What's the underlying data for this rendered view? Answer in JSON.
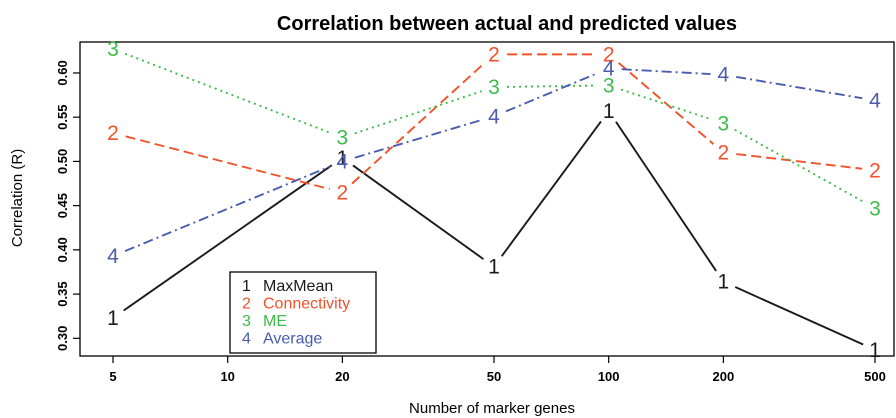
{
  "chart_data": {
    "type": "line",
    "title": "Correlation between actual and predicted values",
    "xlabel": "Number of marker genes",
    "ylabel": "Correlation (R)",
    "x_scale": "log",
    "x_ticks": [
      5,
      10,
      20,
      50,
      100,
      200,
      500
    ],
    "x": [
      5,
      20,
      50,
      100,
      200,
      500
    ],
    "xlim": [
      5,
      500
    ],
    "ylim": [
      0.28,
      0.635
    ],
    "y_ticks": [
      0.3,
      0.35,
      0.4,
      0.45,
      0.5,
      0.55,
      0.6
    ],
    "grid": false,
    "legend_position": "bottom-left",
    "series": [
      {
        "name": "MaxMean",
        "marker": "1",
        "color": "#1a1a1a",
        "dash": "solid",
        "values": [
          0.323,
          0.504,
          0.381,
          0.557,
          0.364,
          0.287
        ]
      },
      {
        "name": "Connectivity",
        "marker": "2",
        "color": "#f0522a",
        "dash": "dashed",
        "values": [
          0.532,
          0.465,
          0.621,
          0.621,
          0.51,
          0.49
        ]
      },
      {
        "name": "ME",
        "marker": "3",
        "color": "#3dbb4a",
        "dash": "dotted",
        "values": [
          0.627,
          0.527,
          0.584,
          0.586,
          0.543,
          0.447
        ]
      },
      {
        "name": "Average",
        "marker": "4",
        "color": "#4a5cad",
        "dash": "dashdot",
        "values": [
          0.393,
          0.5,
          0.551,
          0.605,
          0.598,
          0.569
        ]
      }
    ]
  }
}
